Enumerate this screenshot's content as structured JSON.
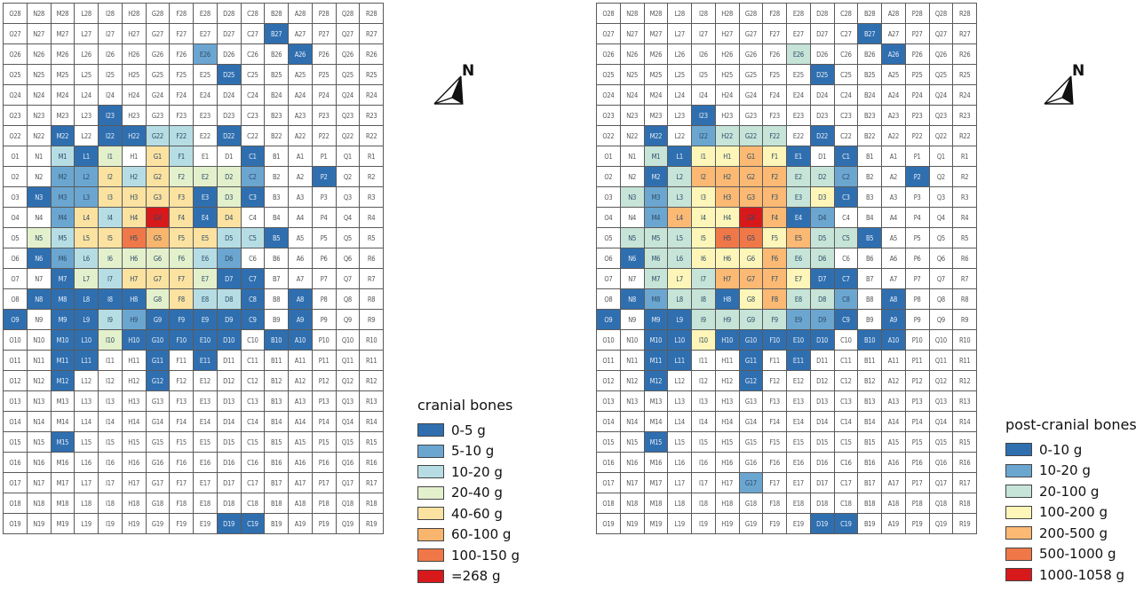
{
  "rows": [
    "28",
    "27",
    "26",
    "25",
    "24",
    "23",
    "22",
    "1",
    "2",
    "3",
    "4",
    "5",
    "6",
    "7",
    "8",
    "9",
    "10",
    "11",
    "12",
    "13",
    "14",
    "15",
    "16",
    "17",
    "18",
    "19"
  ],
  "columns": [
    "O",
    "N",
    "M",
    "L",
    "I",
    "H",
    "G",
    "F",
    "E",
    "D",
    "C",
    "B",
    "A",
    "P",
    "Q",
    "R"
  ],
  "north_label": "N",
  "maps": [
    {
      "id": "cranial",
      "legend_title": "cranial bones",
      "classes": [
        {
          "label": "0-5 g",
          "color": "#2f6fb0"
        },
        {
          "label": "5-10 g",
          "color": "#6ba6d1"
        },
        {
          "label": "10-20 g",
          "color": "#b6dde4"
        },
        {
          "label": "20-40 g",
          "color": "#e3f0cc"
        },
        {
          "label": "40-60 g",
          "color": "#fbe2a0"
        },
        {
          "label": "60-100 g",
          "color": "#f8b56e"
        },
        {
          "label": "100-150 g",
          "color": "#f07848"
        },
        {
          "label": "=268 g",
          "color": "#d7191c"
        }
      ],
      "filled": {
        "B27": 1,
        "A26": 1,
        "E26": 2,
        "D25": 1,
        "I23": 1,
        "M22": 1,
        "I22": 1,
        "H22": 1,
        "G22": 3,
        "F22": 3,
        "D22": 1,
        "M1": 3,
        "L1": 1,
        "I1": 4,
        "G1": 5,
        "F1": 3,
        "C1": 1,
        "M2": 2,
        "L2": 2,
        "I2": 5,
        "H2": 3,
        "G2": 5,
        "F2": 4,
        "E2": 4,
        "D2": 4,
        "C2": 2,
        "P2": 1,
        "N3": 1,
        "M3": 2,
        "L3": 2,
        "I3": 5,
        "H3": 5,
        "G3": 5,
        "F3": 5,
        "E3": 1,
        "D3": 4,
        "C3": 1,
        "M4": 2,
        "L4": 5,
        "I4": 3,
        "H4": 5,
        "G4": 8,
        "F4": 5,
        "E4": 1,
        "D4": 5,
        "N5": 4,
        "M5": 3,
        "L5": 5,
        "I5": 5,
        "H5": 7,
        "G5": 6,
        "F5": 5,
        "E5": 5,
        "D5": 3,
        "C5": 3,
        "B5": 1,
        "N6": 1,
        "M6": 2,
        "L6": 3,
        "I6": 4,
        "H6": 4,
        "G6": 4,
        "F6": 4,
        "E6": 3,
        "D6": 2,
        "M7": 1,
        "L7": 4,
        "I7": 3,
        "H7": 5,
        "G7": 5,
        "F7": 5,
        "E7": 4,
        "D7": 1,
        "C7": 1,
        "N8": 1,
        "M8": 1,
        "L8": 1,
        "I8": 1,
        "H8": 1,
        "G8": 4,
        "F8": 5,
        "E8": 3,
        "D8": 3,
        "C8": 1,
        "A8": 1,
        "O9": 1,
        "M9": 1,
        "L9": 1,
        "I9": 3,
        "H9": 2,
        "G9": 1,
        "F9": 1,
        "E9": 1,
        "D9": 1,
        "C9": 1,
        "A9": 1,
        "M10": 1,
        "L10": 1,
        "I10": 4,
        "H10": 1,
        "G10": 1,
        "F10": 1,
        "E10": 1,
        "D10": 1,
        "B10": 1,
        "A10": 1,
        "M11": 1,
        "L11": 1,
        "G11": 1,
        "E11": 1,
        "M12": 1,
        "G12": 1,
        "M15": 1,
        "D19": 1,
        "C19": 1
      }
    },
    {
      "id": "post-cranial",
      "legend_title": "post-cranial bones",
      "classes": [
        {
          "label": "0-10 g",
          "color": "#2f6fb0"
        },
        {
          "label": "10-20 g",
          "color": "#6ba6d1"
        },
        {
          "label": "20-100 g",
          "color": "#c6e4d8"
        },
        {
          "label": "100-200 g",
          "color": "#fdf6b8"
        },
        {
          "label": "200-500 g",
          "color": "#fbb974"
        },
        {
          "label": "500-1000 g",
          "color": "#f07848"
        },
        {
          "label": "1000-1058 g",
          "color": "#d7191c"
        }
      ],
      "filled": {
        "B27": 1,
        "A26": 1,
        "E26": 3,
        "D25": 1,
        "I23": 1,
        "M22": 1,
        "I22": 2,
        "H22": 3,
        "G22": 3,
        "F22": 3,
        "D22": 1,
        "M1": 3,
        "L1": 1,
        "I1": 4,
        "H1": 4,
        "G1": 5,
        "F1": 4,
        "E1": 1,
        "C1": 1,
        "M2": 1,
        "L2": 3,
        "I2": 5,
        "H2": 5,
        "G2": 5,
        "F2": 5,
        "E2": 3,
        "D2": 3,
        "C2": 2,
        "P2": 1,
        "N3": 3,
        "M3": 2,
        "L3": 3,
        "I3": 4,
        "H3": 5,
        "G3": 5,
        "F3": 5,
        "E3": 3,
        "D3": 4,
        "C3": 1,
        "M4": 2,
        "L4": 5,
        "I4": 4,
        "H4": 4,
        "G4": 7,
        "F4": 5,
        "E4": 1,
        "D4": 2,
        "N5": 3,
        "M5": 3,
        "L5": 3,
        "I5": 4,
        "H5": 6,
        "G5": 6,
        "F5": 4,
        "E5": 5,
        "D5": 3,
        "C5": 3,
        "B5": 1,
        "N6": 1,
        "M6": 3,
        "L6": 3,
        "I6": 4,
        "H6": 4,
        "G6": 4,
        "F6": 5,
        "E6": 3,
        "D6": 3,
        "M7": 3,
        "L7": 4,
        "I7": 3,
        "H7": 5,
        "G7": 5,
        "F7": 5,
        "E7": 4,
        "D7": 1,
        "C7": 1,
        "N8": 1,
        "M8": 2,
        "L8": 3,
        "I8": 3,
        "H8": 1,
        "G8": 4,
        "F8": 5,
        "E8": 3,
        "D8": 3,
        "C8": 2,
        "A8": 1,
        "O9": 1,
        "M9": 1,
        "L9": 1,
        "I9": 3,
        "H9": 3,
        "G9": 3,
        "F9": 3,
        "E9": 2,
        "D9": 2,
        "C9": 1,
        "A9": 1,
        "M10": 1,
        "L10": 1,
        "I10": 4,
        "H10": 1,
        "G10": 1,
        "F10": 1,
        "E10": 1,
        "D10": 1,
        "B10": 1,
        "A10": 1,
        "M11": 1,
        "L11": 1,
        "G11": 1,
        "E11": 1,
        "M12": 1,
        "G12": 1,
        "M15": 1,
        "G17": 2,
        "D19": 1,
        "C19": 1
      }
    }
  ]
}
